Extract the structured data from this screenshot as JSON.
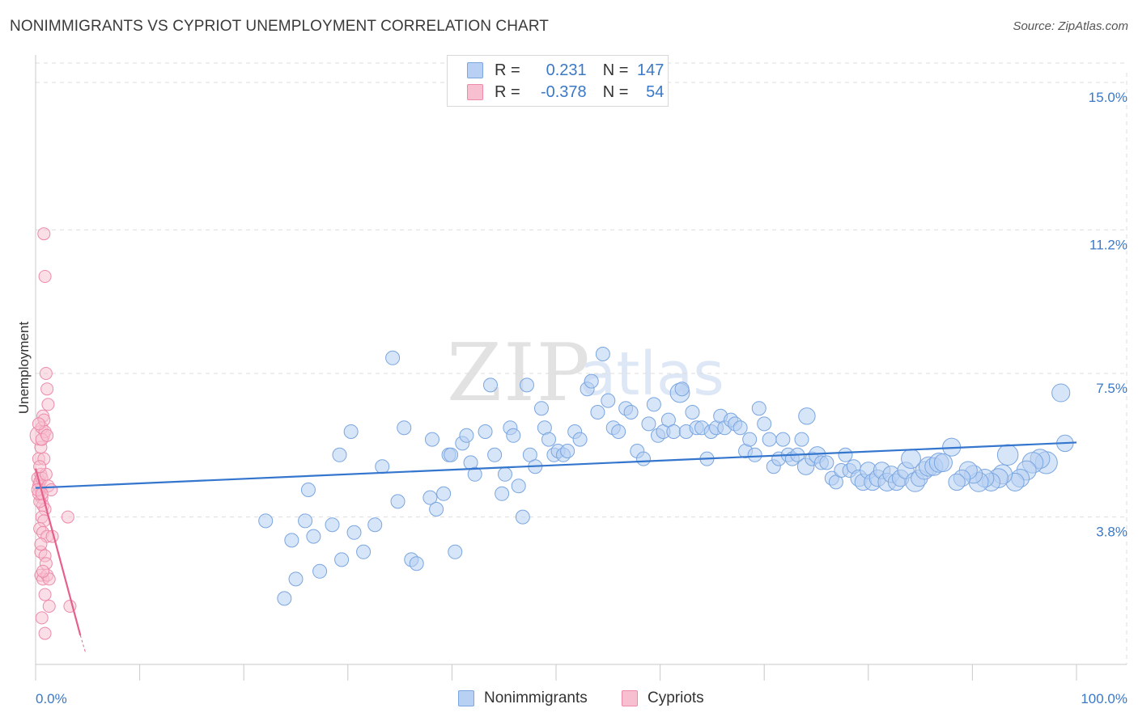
{
  "title": "NONIMMIGRANTS VS CYPRIOT UNEMPLOYMENT CORRELATION CHART",
  "source": "Source: ZipAtlas.com",
  "watermark": {
    "zip": "ZIP",
    "atlas": "atlas"
  },
  "legend": {
    "rows": [
      {
        "r_label": "R =",
        "r_value": "0.231",
        "n_label": "N =",
        "n_value": "147"
      },
      {
        "r_label": "R =",
        "r_value": "-0.378",
        "n_label": "N =",
        "n_value": "54"
      }
    ]
  },
  "bottom_legend": [
    "Nonimmigrants",
    "Cypriots"
  ],
  "colors": {
    "blue_fill": "#b7d0f3",
    "blue_stroke": "#7aa6e0",
    "blue_line": "#3476cd",
    "pink_fill": "#f8bfd0",
    "pink_stroke": "#ec8aaa",
    "pink_line": "#e5608a",
    "tick_label": "#3a78c8",
    "grid": "#dddddd"
  },
  "chart_data": {
    "type": "scatter",
    "title": "NONIMMIGRANTS VS CYPRIOT UNEMPLOYMENT CORRELATION CHART",
    "xlabel": "",
    "ylabel": "Unemployment",
    "xlim": [
      0,
      100
    ],
    "ylim": [
      0,
      15.5
    ],
    "x_tick_labels": [
      "0.0%",
      "100.0%"
    ],
    "y_ticks": [
      3.8,
      7.5,
      11.2,
      15.0
    ],
    "y_tick_labels": [
      "3.8%",
      "7.5%",
      "11.2%",
      "15.0%"
    ],
    "grid": true,
    "series": [
      {
        "name": "Nonimmigrants",
        "r": 0.231,
        "n": 147,
        "trend": {
          "x": [
            0,
            100
          ],
          "y": [
            4.55,
            5.72
          ]
        },
        "points": [
          [
            22.1,
            3.7,
            1
          ],
          [
            23.9,
            1.7,
            1
          ],
          [
            24.6,
            3.2,
            1
          ],
          [
            25.0,
            2.2,
            1
          ],
          [
            25.9,
            3.7,
            1
          ],
          [
            26.2,
            4.5,
            1
          ],
          [
            26.7,
            3.3,
            1
          ],
          [
            27.3,
            2.4,
            1
          ],
          [
            28.5,
            3.6,
            1
          ],
          [
            29.2,
            5.4,
            1
          ],
          [
            29.4,
            2.7,
            1
          ],
          [
            30.3,
            6.0,
            1
          ],
          [
            30.6,
            3.4,
            1
          ],
          [
            31.5,
            2.9,
            1
          ],
          [
            32.6,
            3.6,
            1
          ],
          [
            33.3,
            5.1,
            1
          ],
          [
            34.3,
            7.9,
            1
          ],
          [
            34.8,
            4.2,
            1
          ],
          [
            35.4,
            6.1,
            1
          ],
          [
            36.1,
            2.7,
            1
          ],
          [
            36.6,
            2.6,
            1
          ],
          [
            37.9,
            4.3,
            1
          ],
          [
            38.1,
            5.8,
            1
          ],
          [
            38.5,
            4.0,
            1
          ],
          [
            39.2,
            4.4,
            1
          ],
          [
            39.7,
            5.4,
            1
          ],
          [
            39.9,
            5.4,
            1
          ],
          [
            40.3,
            2.9,
            1
          ],
          [
            41.0,
            5.7,
            1
          ],
          [
            41.4,
            5.9,
            1
          ],
          [
            41.8,
            5.2,
            1
          ],
          [
            42.2,
            4.9,
            1
          ],
          [
            43.2,
            6.0,
            1
          ],
          [
            43.7,
            7.2,
            1
          ],
          [
            44.1,
            5.4,
            1
          ],
          [
            44.8,
            4.4,
            1
          ],
          [
            45.1,
            4.9,
            1
          ],
          [
            45.6,
            6.1,
            1
          ],
          [
            45.9,
            5.9,
            1
          ],
          [
            46.4,
            4.6,
            1
          ],
          [
            46.8,
            3.8,
            1
          ],
          [
            47.2,
            7.2,
            1
          ],
          [
            47.5,
            5.4,
            1
          ],
          [
            48.0,
            5.1,
            1
          ],
          [
            48.6,
            6.6,
            1
          ],
          [
            48.9,
            6.1,
            1
          ],
          [
            49.3,
            5.8,
            1
          ],
          [
            49.8,
            5.4,
            1
          ],
          [
            50.2,
            5.5,
            1
          ],
          [
            50.7,
            5.4,
            1
          ],
          [
            51.1,
            5.5,
            1
          ],
          [
            51.8,
            6.0,
            1
          ],
          [
            52.3,
            5.8,
            1
          ],
          [
            53.0,
            7.1,
            1
          ],
          [
            53.4,
            7.3,
            1
          ],
          [
            54.0,
            6.5,
            1
          ],
          [
            54.5,
            8.0,
            1
          ],
          [
            55.0,
            6.8,
            1
          ],
          [
            55.5,
            6.1,
            1
          ],
          [
            56.0,
            6.0,
            1
          ],
          [
            56.7,
            6.6,
            1
          ],
          [
            57.2,
            6.5,
            1
          ],
          [
            57.8,
            5.5,
            1
          ],
          [
            58.4,
            5.3,
            1
          ],
          [
            58.9,
            6.2,
            1
          ],
          [
            59.4,
            6.7,
            1
          ],
          [
            59.8,
            5.9,
            1
          ],
          [
            60.3,
            6.0,
            1
          ],
          [
            60.8,
            6.3,
            1
          ],
          [
            61.3,
            6.0,
            1
          ],
          [
            61.9,
            7.0,
            1.4
          ],
          [
            62.1,
            7.1,
            1
          ],
          [
            62.5,
            6.0,
            1
          ],
          [
            63.1,
            6.5,
            1
          ],
          [
            63.5,
            6.1,
            1
          ],
          [
            64.0,
            6.1,
            1
          ],
          [
            64.5,
            5.3,
            1
          ],
          [
            64.9,
            6.0,
            1
          ],
          [
            65.4,
            6.1,
            1
          ],
          [
            65.8,
            6.4,
            1
          ],
          [
            66.2,
            6.1,
            1
          ],
          [
            66.8,
            6.3,
            1
          ],
          [
            67.2,
            6.2,
            1
          ],
          [
            67.7,
            6.1,
            1
          ],
          [
            68.2,
            5.5,
            1
          ],
          [
            68.6,
            5.8,
            1
          ],
          [
            69.1,
            5.4,
            1
          ],
          [
            69.5,
            6.6,
            1
          ],
          [
            70.0,
            6.2,
            1
          ],
          [
            70.5,
            5.8,
            1
          ],
          [
            70.9,
            5.1,
            1
          ],
          [
            71.4,
            5.3,
            1
          ],
          [
            71.8,
            5.8,
            1
          ],
          [
            72.3,
            5.4,
            1
          ],
          [
            72.7,
            5.3,
            1
          ],
          [
            73.2,
            5.4,
            1
          ],
          [
            73.6,
            5.8,
            1
          ],
          [
            74.0,
            5.1,
            1.2
          ],
          [
            74.1,
            6.4,
            1.2
          ],
          [
            74.6,
            5.3,
            1
          ],
          [
            75.1,
            5.4,
            1.2
          ],
          [
            75.5,
            5.2,
            1
          ],
          [
            76.0,
            5.2,
            1
          ],
          [
            76.5,
            4.8,
            1
          ],
          [
            76.9,
            4.7,
            1
          ],
          [
            77.4,
            5.0,
            1
          ],
          [
            77.8,
            5.4,
            1
          ],
          [
            78.2,
            5.0,
            1
          ],
          [
            78.6,
            5.1,
            1
          ],
          [
            79.1,
            4.8,
            1.2
          ],
          [
            79.5,
            4.7,
            1.2
          ],
          [
            80.0,
            5.0,
            1.2
          ],
          [
            80.4,
            4.7,
            1.2
          ],
          [
            80.9,
            4.8,
            1.2
          ],
          [
            81.3,
            5.0,
            1.2
          ],
          [
            81.8,
            4.7,
            1.3
          ],
          [
            82.2,
            4.9,
            1.2
          ],
          [
            82.7,
            4.7,
            1.2
          ],
          [
            83.1,
            4.8,
            1.2
          ],
          [
            83.6,
            5.0,
            1.2
          ],
          [
            84.1,
            5.3,
            1.4
          ],
          [
            84.5,
            4.7,
            1.4
          ],
          [
            84.9,
            4.8,
            1.2
          ],
          [
            85.4,
            5.0,
            1.3
          ],
          [
            85.8,
            5.1,
            1.4
          ],
          [
            86.3,
            5.1,
            1.3
          ],
          [
            86.8,
            5.2,
            1.4
          ],
          [
            87.2,
            5.2,
            1.3
          ],
          [
            88.0,
            5.6,
            1.3
          ],
          [
            98.5,
            7.0,
            1.3
          ],
          [
            98.9,
            5.7,
            1.2
          ],
          [
            97.1,
            5.2,
            1.6
          ],
          [
            96.5,
            5.3,
            1.4
          ],
          [
            95.8,
            5.2,
            1.5
          ],
          [
            95.2,
            5.0,
            1.4
          ],
          [
            94.6,
            4.8,
            1.3
          ],
          [
            94.1,
            4.7,
            1.3
          ],
          [
            93.4,
            5.4,
            1.5
          ],
          [
            92.9,
            4.9,
            1.4
          ],
          [
            92.5,
            4.8,
            1.4
          ],
          [
            91.8,
            4.7,
            1.3
          ],
          [
            91.2,
            4.8,
            1.3
          ],
          [
            90.6,
            4.7,
            1.4
          ],
          [
            90.1,
            4.9,
            1.3
          ],
          [
            89.6,
            5.0,
            1.3
          ],
          [
            89.0,
            4.8,
            1.2
          ],
          [
            88.5,
            4.7,
            1.2
          ]
        ]
      },
      {
        "name": "Cypriots",
        "r": -0.378,
        "n": 54,
        "trend": {
          "x": [
            0,
            4.3
          ],
          "y": [
            5.05,
            0.75
          ]
        },
        "trend_extension": {
          "x": [
            4.3,
            4.8
          ],
          "y": [
            0.75,
            0.3
          ]
        },
        "points": [
          [
            0.2,
            4.8,
            1
          ],
          [
            0.3,
            4.6,
            1
          ],
          [
            0.4,
            4.7,
            1
          ],
          [
            0.5,
            4.5,
            1
          ],
          [
            0.6,
            4.3,
            1
          ],
          [
            0.3,
            5.3,
            1
          ],
          [
            0.5,
            5.6,
            1
          ],
          [
            0.4,
            5.9,
            1.6
          ],
          [
            0.6,
            6.1,
            1
          ],
          [
            0.7,
            6.4,
            1
          ],
          [
            0.8,
            11.1,
            1
          ],
          [
            0.9,
            10.0,
            1
          ],
          [
            1.0,
            7.5,
            1
          ],
          [
            1.1,
            7.1,
            1
          ],
          [
            1.2,
            6.7,
            1
          ],
          [
            0.8,
            6.3,
            1
          ],
          [
            0.9,
            6.0,
            1
          ],
          [
            0.5,
            4.9,
            1
          ],
          [
            0.6,
            4.8,
            1
          ],
          [
            1.0,
            4.9,
            1
          ],
          [
            1.2,
            4.6,
            1
          ],
          [
            1.5,
            4.5,
            1
          ],
          [
            0.7,
            4.1,
            1
          ],
          [
            0.9,
            4.0,
            1
          ],
          [
            0.6,
            3.8,
            1
          ],
          [
            0.8,
            3.7,
            1
          ],
          [
            0.4,
            3.5,
            1
          ],
          [
            0.7,
            3.4,
            1
          ],
          [
            1.1,
            3.3,
            1
          ],
          [
            1.6,
            3.3,
            1
          ],
          [
            0.5,
            2.9,
            1
          ],
          [
            0.9,
            2.8,
            1
          ],
          [
            1.0,
            2.6,
            1
          ],
          [
            0.5,
            2.3,
            1
          ],
          [
            0.7,
            2.2,
            1
          ],
          [
            1.1,
            2.3,
            1
          ],
          [
            1.3,
            2.2,
            1
          ],
          [
            0.9,
            1.8,
            1
          ],
          [
            1.3,
            1.5,
            1
          ],
          [
            3.3,
            1.5,
            1
          ],
          [
            0.6,
            1.2,
            1
          ],
          [
            0.9,
            0.8,
            1
          ],
          [
            3.1,
            3.8,
            1
          ],
          [
            0.4,
            4.2,
            1
          ],
          [
            0.3,
            4.4,
            1
          ],
          [
            0.2,
            4.5,
            1
          ],
          [
            0.8,
            5.3,
            1
          ],
          [
            0.3,
            6.2,
            1
          ],
          [
            0.6,
            5.8,
            1
          ],
          [
            1.1,
            5.9,
            1
          ],
          [
            0.5,
            3.1,
            1
          ],
          [
            0.7,
            2.4,
            1
          ],
          [
            0.4,
            5.1,
            1
          ],
          [
            0.6,
            4.4,
            1
          ]
        ]
      }
    ]
  }
}
